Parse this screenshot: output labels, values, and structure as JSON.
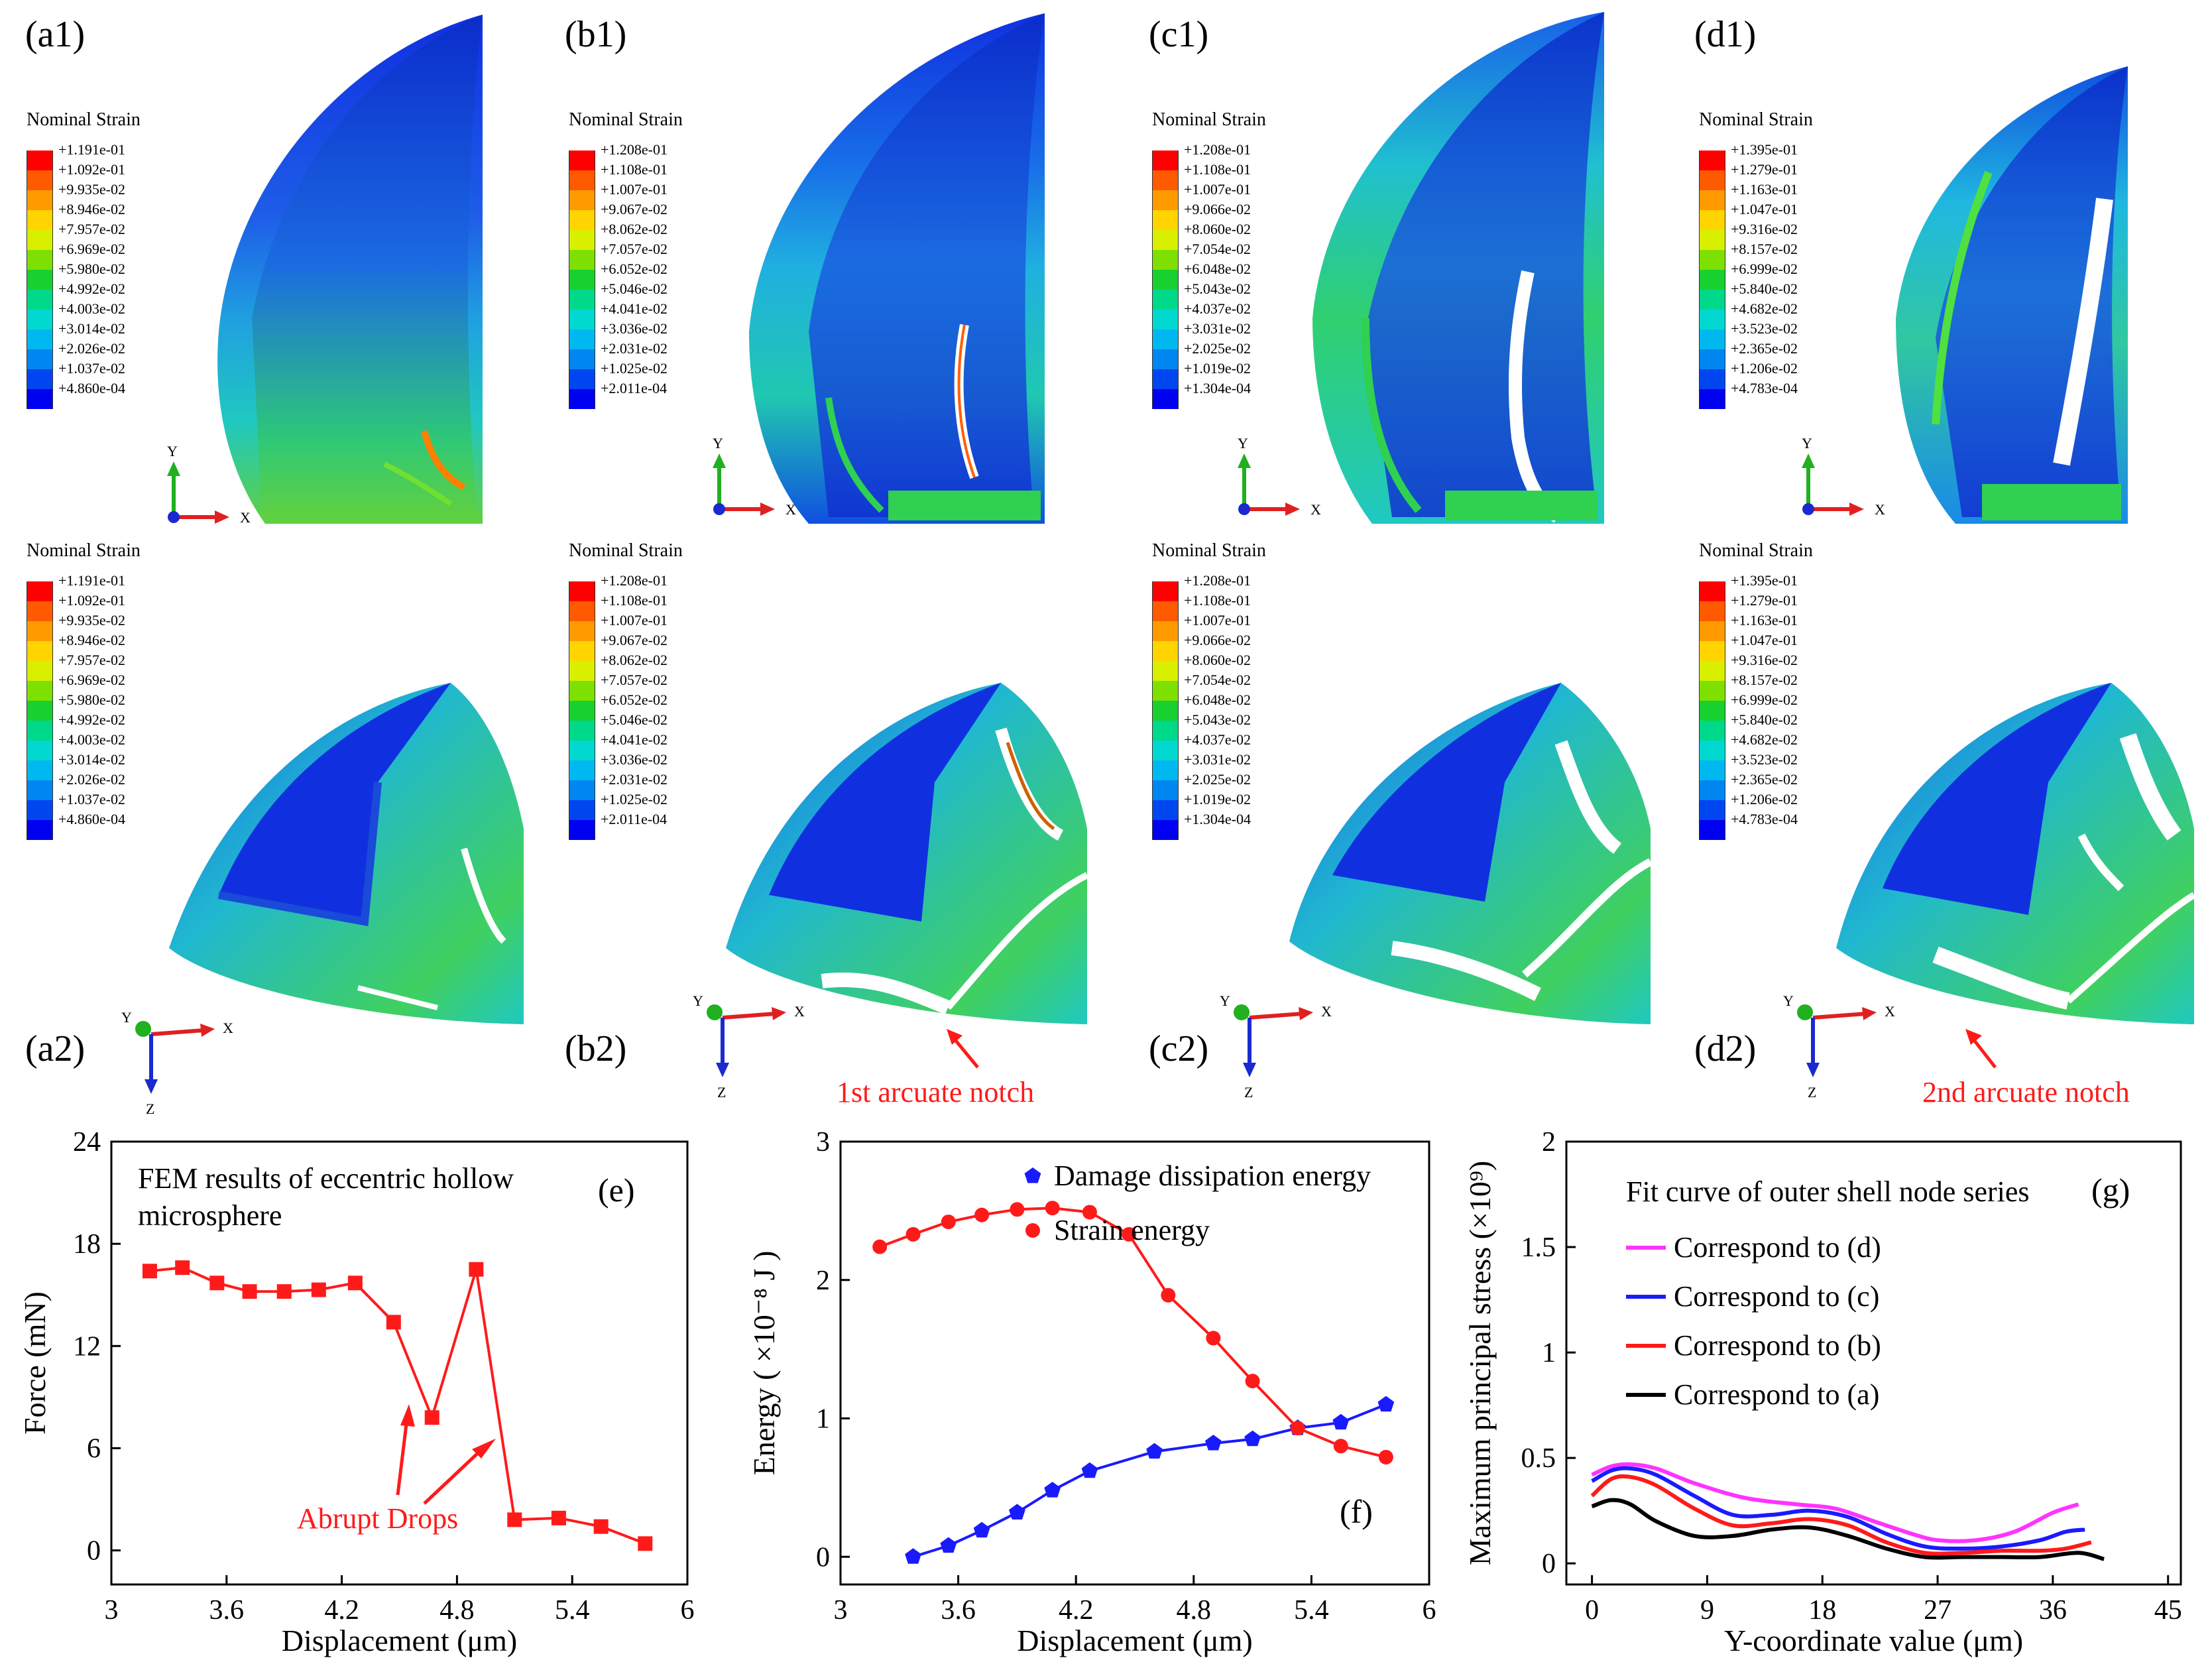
{
  "panels": {
    "a1": "(a1)",
    "b1": "(b1)",
    "c1": "(c1)",
    "d1": "(d1)",
    "a2": "(a2)",
    "b2": "(b2)",
    "c2": "(c2)",
    "d2": "(d2)"
  },
  "legend_title": "Nominal Strain",
  "legend_colors": [
    "#ff0000",
    "#ff5a00",
    "#ff9a00",
    "#ffd400",
    "#d8f000",
    "#7ee000",
    "#18d030",
    "#00d88a",
    "#00d8d0",
    "#00b8f0",
    "#0086f0",
    "#0046f0",
    "#0000f0"
  ],
  "legends": {
    "a": [
      "+1.191e-01",
      "+1.092e-01",
      "+9.935e-02",
      "+8.946e-02",
      "+7.957e-02",
      "+6.969e-02",
      "+5.980e-02",
      "+4.992e-02",
      "+4.003e-02",
      "+3.014e-02",
      "+2.026e-02",
      "+1.037e-02",
      "+4.860e-04"
    ],
    "b": [
      "+1.208e-01",
      "+1.108e-01",
      "+1.007e-01",
      "+9.067e-02",
      "+8.062e-02",
      "+7.057e-02",
      "+6.052e-02",
      "+5.046e-02",
      "+4.041e-02",
      "+3.036e-02",
      "+2.031e-02",
      "+1.025e-02",
      "+2.011e-04"
    ],
    "c": [
      "+1.208e-01",
      "+1.108e-01",
      "+1.007e-01",
      "+9.066e-02",
      "+8.060e-02",
      "+7.054e-02",
      "+6.048e-02",
      "+5.043e-02",
      "+4.037e-02",
      "+3.031e-02",
      "+2.025e-02",
      "+1.019e-02",
      "+1.304e-04"
    ],
    "d": [
      "+1.395e-01",
      "+1.279e-01",
      "+1.163e-01",
      "+1.047e-01",
      "+9.316e-02",
      "+8.157e-02",
      "+6.999e-02",
      "+5.840e-02",
      "+4.682e-02",
      "+3.523e-02",
      "+2.365e-02",
      "+1.206e-02",
      "+4.783e-04"
    ]
  },
  "axes_labels": {
    "x": "X",
    "y": "Y",
    "z": "Z"
  },
  "annotations": {
    "notch1": "1st arcuate notch",
    "notch2": "2nd  arcuate notch",
    "abrupt": "Abrupt Drops"
  },
  "chart_data": [
    {
      "id": "e",
      "type": "line",
      "panel_label": "(e)",
      "title_lines": [
        "FEM results of  eccentric hollow",
        "microsphere"
      ],
      "xlabel": "Displacement (μm)",
      "ylabel": "Force (mN)",
      "xlim": [
        3,
        6
      ],
      "ylim": [
        -2,
        24
      ],
      "xticks": [
        "3",
        "3.6",
        "4.2",
        "4.8",
        "5.4",
        "6"
      ],
      "yticks": [
        "0",
        "6",
        "12",
        "18",
        "24"
      ],
      "series": [
        {
          "name": "Force",
          "color": "#ff1a1a",
          "marker": "square",
          "x": [
            3.2,
            3.37,
            3.55,
            3.72,
            3.9,
            4.08,
            4.27,
            4.47,
            4.67,
            4.9,
            5.1,
            5.33,
            5.55,
            5.78
          ],
          "y": [
            16.4,
            16.6,
            15.7,
            15.2,
            15.2,
            15.3,
            15.7,
            13.4,
            7.8,
            16.5,
            1.8,
            1.9,
            1.4,
            0.4
          ]
        }
      ]
    },
    {
      "id": "f",
      "type": "line",
      "panel_label": "(f)",
      "xlabel": "Displacement (μm)",
      "ylabel": "Energy ( ×10⁻⁸ J )",
      "xlim": [
        3,
        6
      ],
      "ylim": [
        -0.2,
        3
      ],
      "xticks": [
        "3",
        "3.6",
        "4.2",
        "4.8",
        "5.4",
        "6"
      ],
      "yticks": [
        "0",
        "1",
        "2",
        "3"
      ],
      "series": [
        {
          "name": "Damage dissipation energy",
          "color": "#1a1aff",
          "marker": "pentagon",
          "x": [
            3.37,
            3.55,
            3.72,
            3.9,
            4.08,
            4.27,
            4.6,
            4.9,
            5.1,
            5.33,
            5.55,
            5.78
          ],
          "y": [
            0.0,
            0.08,
            0.19,
            0.32,
            0.48,
            0.62,
            0.76,
            0.82,
            0.85,
            0.93,
            0.97,
            1.1
          ]
        },
        {
          "name": "Strain energy",
          "color": "#ff1a1a",
          "marker": "circle",
          "x": [
            3.2,
            3.37,
            3.55,
            3.72,
            3.9,
            4.08,
            4.27,
            4.47,
            4.67,
            4.9,
            5.1,
            5.33,
            5.55,
            5.78
          ],
          "y": [
            2.24,
            2.33,
            2.42,
            2.47,
            2.51,
            2.52,
            2.49,
            2.33,
            1.89,
            1.58,
            1.27,
            0.93,
            0.8,
            0.72
          ]
        }
      ]
    },
    {
      "id": "g",
      "type": "line",
      "panel_label": "(g)",
      "title": "Fit curve of outer shell node series",
      "xlabel": "Y-coordinate value (μm)",
      "ylabel": "Maximum principal stress (×10⁹)",
      "xlim": [
        -2,
        46
      ],
      "ylim": [
        -0.1,
        2
      ],
      "xticks": [
        "0",
        "9",
        "18",
        "27",
        "36",
        "45"
      ],
      "yticks": [
        "0",
        "0.5",
        "1",
        "1.5",
        "2"
      ],
      "series": [
        {
          "name": "Correspond to (d)",
          "color": "#ff33ff",
          "x": [
            0,
            1.5,
            3,
            5,
            8,
            12,
            16,
            19,
            22,
            25,
            27,
            30,
            33,
            36,
            38
          ],
          "y": [
            0.42,
            0.46,
            0.47,
            0.45,
            0.38,
            0.31,
            0.28,
            0.26,
            0.2,
            0.14,
            0.11,
            0.11,
            0.15,
            0.24,
            0.28
          ]
        },
        {
          "name": "Correspond to (c)",
          "color": "#1a1aff",
          "x": [
            0,
            1.5,
            3,
            5,
            8,
            11,
            14,
            17,
            20,
            23,
            26,
            29,
            32,
            35,
            37,
            38.5
          ],
          "y": [
            0.39,
            0.44,
            0.45,
            0.42,
            0.32,
            0.23,
            0.23,
            0.25,
            0.22,
            0.14,
            0.08,
            0.07,
            0.08,
            0.11,
            0.15,
            0.16
          ]
        },
        {
          "name": "Correspond to (b)",
          "color": "#ff1a1a",
          "x": [
            0,
            1.5,
            3,
            5,
            8,
            11,
            14,
            17,
            20,
            23,
            26,
            29,
            32,
            35,
            37,
            39
          ],
          "y": [
            0.32,
            0.4,
            0.41,
            0.37,
            0.26,
            0.18,
            0.19,
            0.21,
            0.18,
            0.1,
            0.05,
            0.05,
            0.06,
            0.06,
            0.07,
            0.1
          ]
        },
        {
          "name": "Correspond to (a)",
          "color": "#000000",
          "x": [
            0,
            1.5,
            3,
            5,
            8,
            11,
            14,
            17,
            20,
            23,
            26,
            29,
            32,
            35,
            38,
            40
          ],
          "y": [
            0.27,
            0.3,
            0.28,
            0.2,
            0.13,
            0.13,
            0.16,
            0.17,
            0.13,
            0.07,
            0.03,
            0.03,
            0.03,
            0.03,
            0.05,
            0.02
          ]
        }
      ]
    }
  ]
}
